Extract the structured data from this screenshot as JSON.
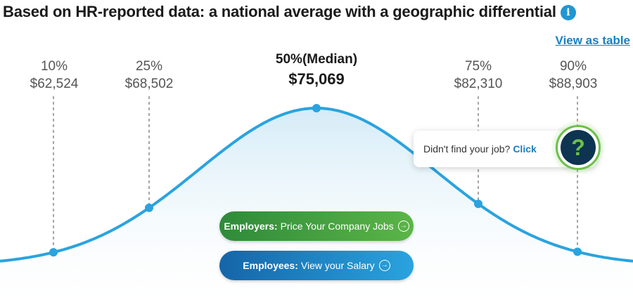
{
  "header": {
    "title": "Based on HR-reported data: a national average with a geographic differential",
    "info_icon": "info-icon",
    "view_table_label": "View as table"
  },
  "percentiles": [
    {
      "label": "10%",
      "value": "$62,524"
    },
    {
      "label": "25%",
      "value": "$68,502"
    },
    {
      "label": "50%(Median)",
      "value": "$75,069"
    },
    {
      "label": "75%",
      "value": "$82,310"
    },
    {
      "label": "90%",
      "value": "$88,903"
    }
  ],
  "buttons": {
    "employers_bold": "Employers:",
    "employers_text": "Price Your Company Jobs",
    "employees_bold": "Employees:",
    "employees_text": "View your Salary",
    "arrow_icon": "arrow-right-circle-icon"
  },
  "job_prompt": {
    "text": "Didn't find your job?",
    "link": "Click",
    "icon": "question-mark-icon",
    "icon_glyph": "?"
  },
  "colors": {
    "curve": "#2aa3df",
    "employers_button": "#3b9a3f",
    "employees_button": "#1a7fc1",
    "link": "#1a7fc1",
    "help_badge": "#0d3450",
    "help_accent": "#6cc04a"
  }
}
